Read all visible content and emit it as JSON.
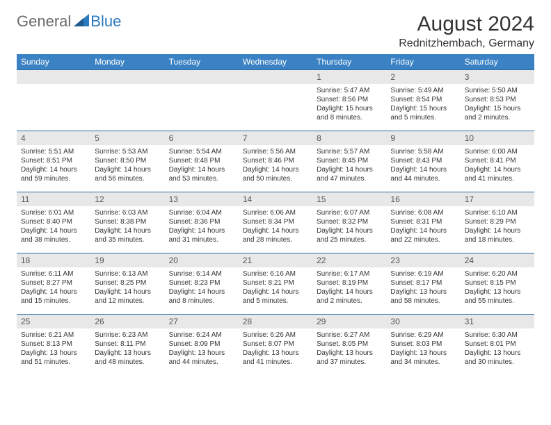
{
  "logo": {
    "text1": "General",
    "text2": "Blue"
  },
  "title": "August 2024",
  "location": "Rednitzhembach, Germany",
  "colors": {
    "header_bg": "#3b82c4",
    "header_text": "#ffffff",
    "daynum_bg": "#e8e8e8",
    "border": "#2a6aa3",
    "logo_gray": "#6a6a6a",
    "logo_blue": "#2a7bbd",
    "body_text": "#333333"
  },
  "weekdays": [
    "Sunday",
    "Monday",
    "Tuesday",
    "Wednesday",
    "Thursday",
    "Friday",
    "Saturday"
  ],
  "weeks": [
    [
      null,
      null,
      null,
      null,
      {
        "n": "1",
        "sunrise": "5:47 AM",
        "sunset": "8:56 PM",
        "daylight": "15 hours and 8 minutes."
      },
      {
        "n": "2",
        "sunrise": "5:49 AM",
        "sunset": "8:54 PM",
        "daylight": "15 hours and 5 minutes."
      },
      {
        "n": "3",
        "sunrise": "5:50 AM",
        "sunset": "8:53 PM",
        "daylight": "15 hours and 2 minutes."
      }
    ],
    [
      {
        "n": "4",
        "sunrise": "5:51 AM",
        "sunset": "8:51 PM",
        "daylight": "14 hours and 59 minutes."
      },
      {
        "n": "5",
        "sunrise": "5:53 AM",
        "sunset": "8:50 PM",
        "daylight": "14 hours and 56 minutes."
      },
      {
        "n": "6",
        "sunrise": "5:54 AM",
        "sunset": "8:48 PM",
        "daylight": "14 hours and 53 minutes."
      },
      {
        "n": "7",
        "sunrise": "5:56 AM",
        "sunset": "8:46 PM",
        "daylight": "14 hours and 50 minutes."
      },
      {
        "n": "8",
        "sunrise": "5:57 AM",
        "sunset": "8:45 PM",
        "daylight": "14 hours and 47 minutes."
      },
      {
        "n": "9",
        "sunrise": "5:58 AM",
        "sunset": "8:43 PM",
        "daylight": "14 hours and 44 minutes."
      },
      {
        "n": "10",
        "sunrise": "6:00 AM",
        "sunset": "8:41 PM",
        "daylight": "14 hours and 41 minutes."
      }
    ],
    [
      {
        "n": "11",
        "sunrise": "6:01 AM",
        "sunset": "8:40 PM",
        "daylight": "14 hours and 38 minutes."
      },
      {
        "n": "12",
        "sunrise": "6:03 AM",
        "sunset": "8:38 PM",
        "daylight": "14 hours and 35 minutes."
      },
      {
        "n": "13",
        "sunrise": "6:04 AM",
        "sunset": "8:36 PM",
        "daylight": "14 hours and 31 minutes."
      },
      {
        "n": "14",
        "sunrise": "6:06 AM",
        "sunset": "8:34 PM",
        "daylight": "14 hours and 28 minutes."
      },
      {
        "n": "15",
        "sunrise": "6:07 AM",
        "sunset": "8:32 PM",
        "daylight": "14 hours and 25 minutes."
      },
      {
        "n": "16",
        "sunrise": "6:08 AM",
        "sunset": "8:31 PM",
        "daylight": "14 hours and 22 minutes."
      },
      {
        "n": "17",
        "sunrise": "6:10 AM",
        "sunset": "8:29 PM",
        "daylight": "14 hours and 18 minutes."
      }
    ],
    [
      {
        "n": "18",
        "sunrise": "6:11 AM",
        "sunset": "8:27 PM",
        "daylight": "14 hours and 15 minutes."
      },
      {
        "n": "19",
        "sunrise": "6:13 AM",
        "sunset": "8:25 PM",
        "daylight": "14 hours and 12 minutes."
      },
      {
        "n": "20",
        "sunrise": "6:14 AM",
        "sunset": "8:23 PM",
        "daylight": "14 hours and 8 minutes."
      },
      {
        "n": "21",
        "sunrise": "6:16 AM",
        "sunset": "8:21 PM",
        "daylight": "14 hours and 5 minutes."
      },
      {
        "n": "22",
        "sunrise": "6:17 AM",
        "sunset": "8:19 PM",
        "daylight": "14 hours and 2 minutes."
      },
      {
        "n": "23",
        "sunrise": "6:19 AM",
        "sunset": "8:17 PM",
        "daylight": "13 hours and 58 minutes."
      },
      {
        "n": "24",
        "sunrise": "6:20 AM",
        "sunset": "8:15 PM",
        "daylight": "13 hours and 55 minutes."
      }
    ],
    [
      {
        "n": "25",
        "sunrise": "6:21 AM",
        "sunset": "8:13 PM",
        "daylight": "13 hours and 51 minutes."
      },
      {
        "n": "26",
        "sunrise": "6:23 AM",
        "sunset": "8:11 PM",
        "daylight": "13 hours and 48 minutes."
      },
      {
        "n": "27",
        "sunrise": "6:24 AM",
        "sunset": "8:09 PM",
        "daylight": "13 hours and 44 minutes."
      },
      {
        "n": "28",
        "sunrise": "6:26 AM",
        "sunset": "8:07 PM",
        "daylight": "13 hours and 41 minutes."
      },
      {
        "n": "29",
        "sunrise": "6:27 AM",
        "sunset": "8:05 PM",
        "daylight": "13 hours and 37 minutes."
      },
      {
        "n": "30",
        "sunrise": "6:29 AM",
        "sunset": "8:03 PM",
        "daylight": "13 hours and 34 minutes."
      },
      {
        "n": "31",
        "sunrise": "6:30 AM",
        "sunset": "8:01 PM",
        "daylight": "13 hours and 30 minutes."
      }
    ]
  ],
  "labels": {
    "sunrise": "Sunrise:",
    "sunset": "Sunset:",
    "daylight": "Daylight:"
  }
}
